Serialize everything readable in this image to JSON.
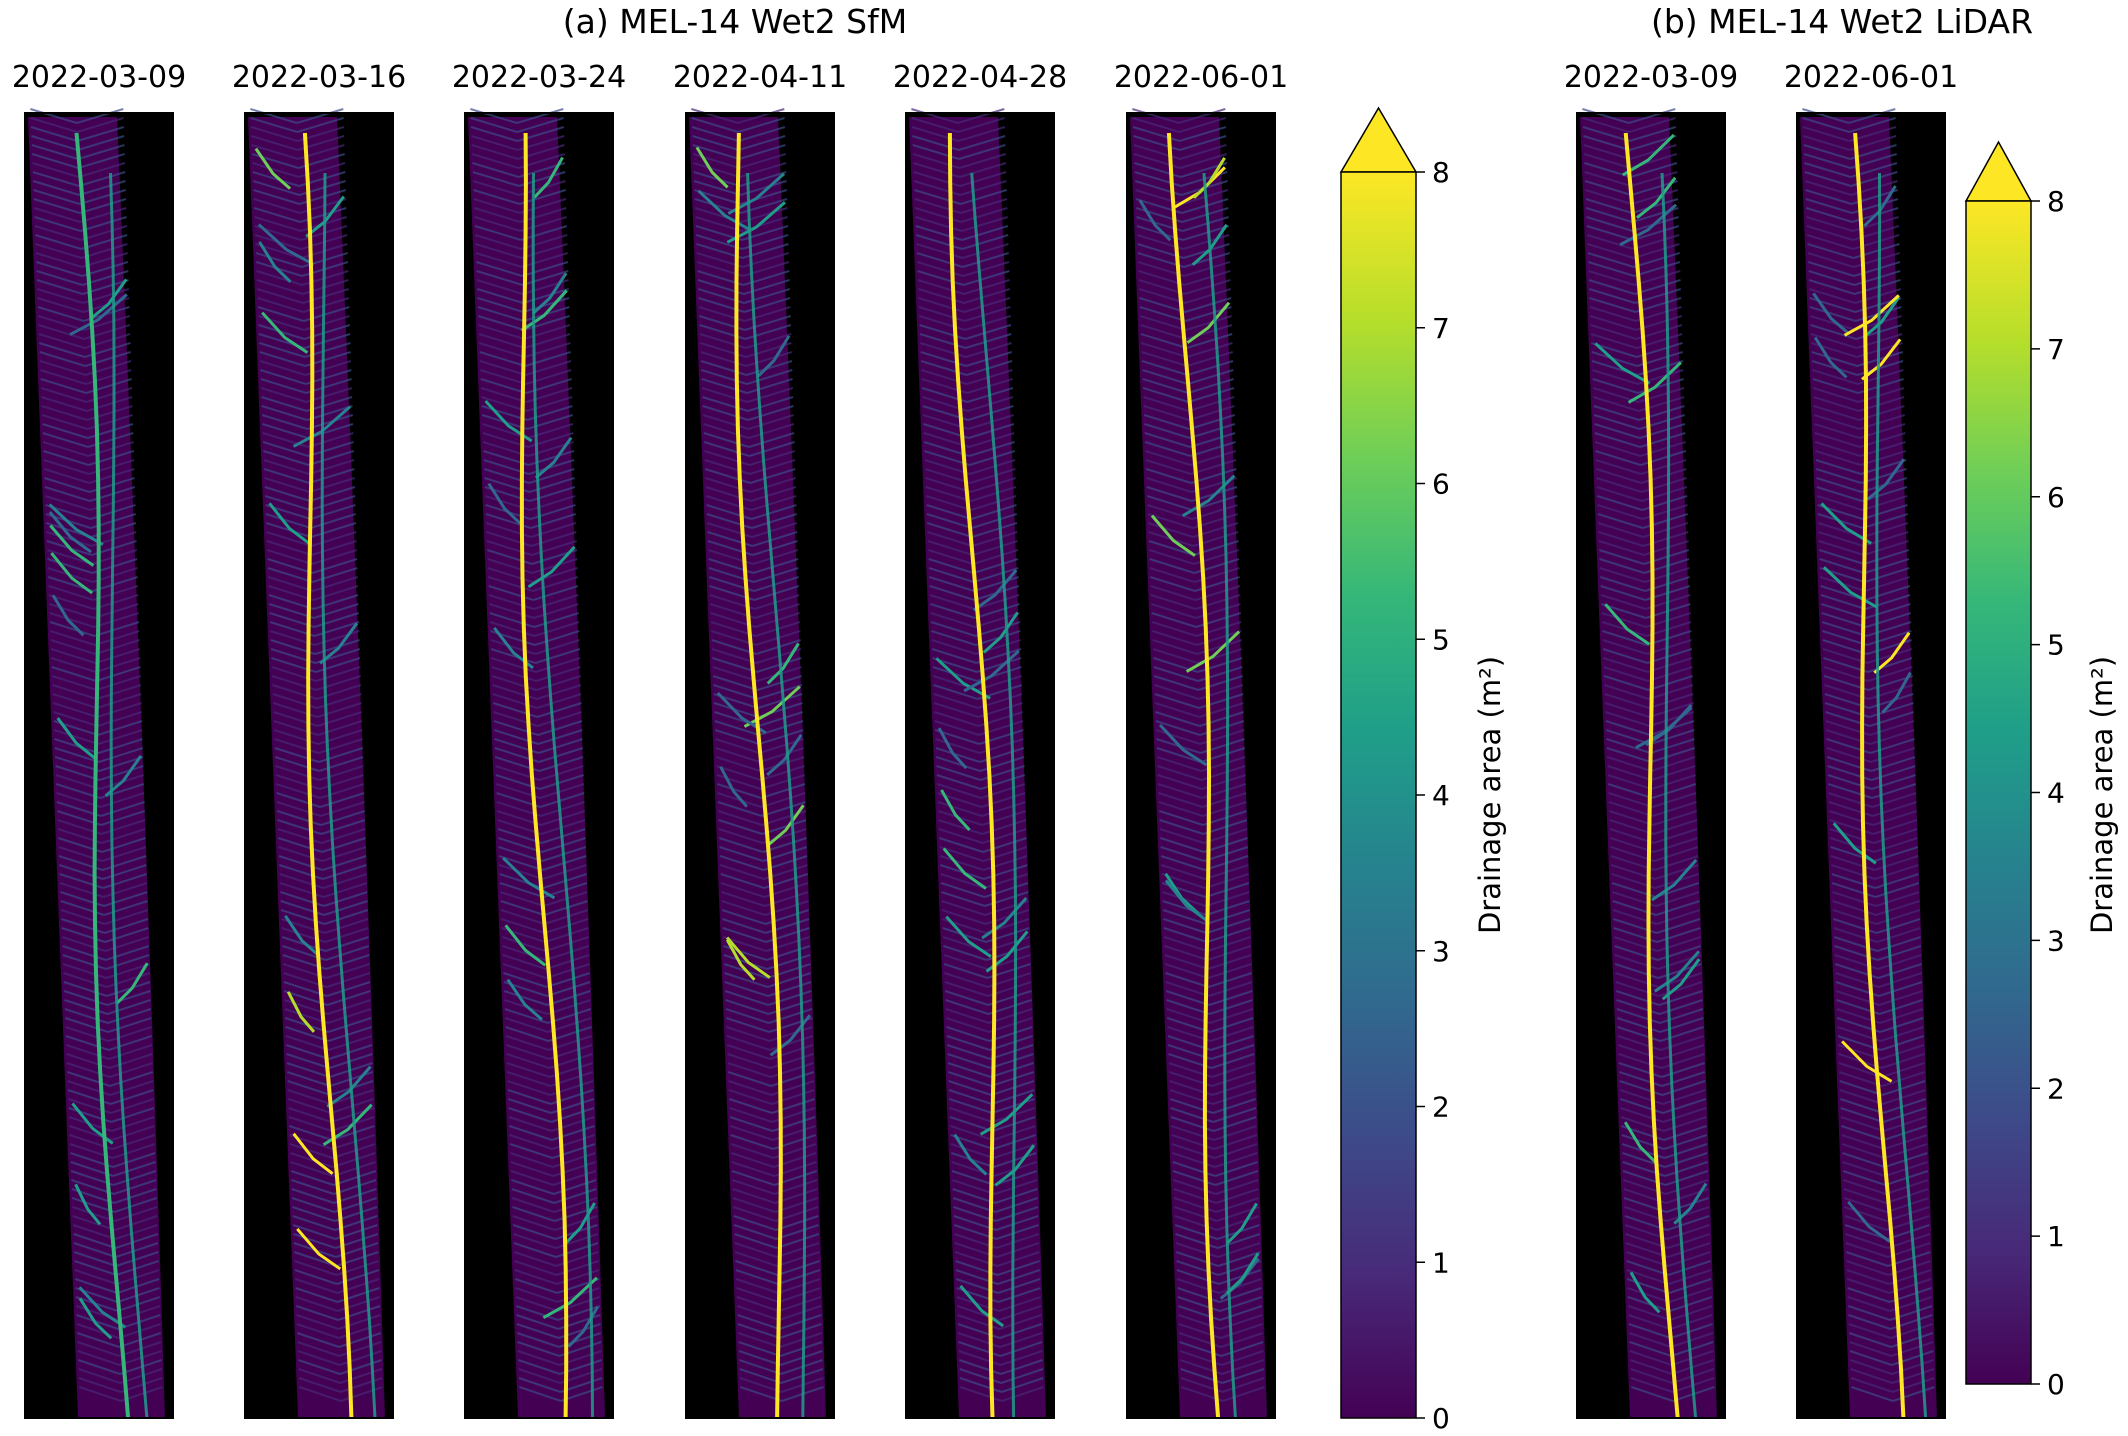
{
  "panel_a": {
    "title": "(a) MEL-14 Wet2 SfM",
    "dates": [
      "2022-03-09",
      "2022-03-16",
      "2022-03-24",
      "2022-04-11",
      "2022-04-28",
      "2022-06-01"
    ]
  },
  "panel_b": {
    "title": "(b) MEL-14 Wet2 LiDAR",
    "dates": [
      "2022-03-09",
      "2022-06-01"
    ]
  },
  "colorbar_a": {
    "label": "Drainage area (m²)",
    "ticks": [
      "0",
      "1",
      "2",
      "3",
      "4",
      "5",
      "6",
      "7",
      "8"
    ],
    "min": 0,
    "max": 8,
    "extend": "max"
  },
  "colorbar_b": {
    "label": "Drainage area (m²)",
    "ticks": [
      "0",
      "1",
      "2",
      "3",
      "4",
      "5",
      "6",
      "7",
      "8"
    ],
    "min": 0,
    "max": 8,
    "extend": "max"
  },
  "colors": {
    "background": "#000000",
    "low": "#440154",
    "high": "#fde725",
    "viridis": [
      "#440154",
      "#482878",
      "#3e4989",
      "#31688e",
      "#26828e",
      "#1f9e89",
      "#35b779",
      "#6ece58",
      "#b5de2b",
      "#fde725"
    ]
  }
}
